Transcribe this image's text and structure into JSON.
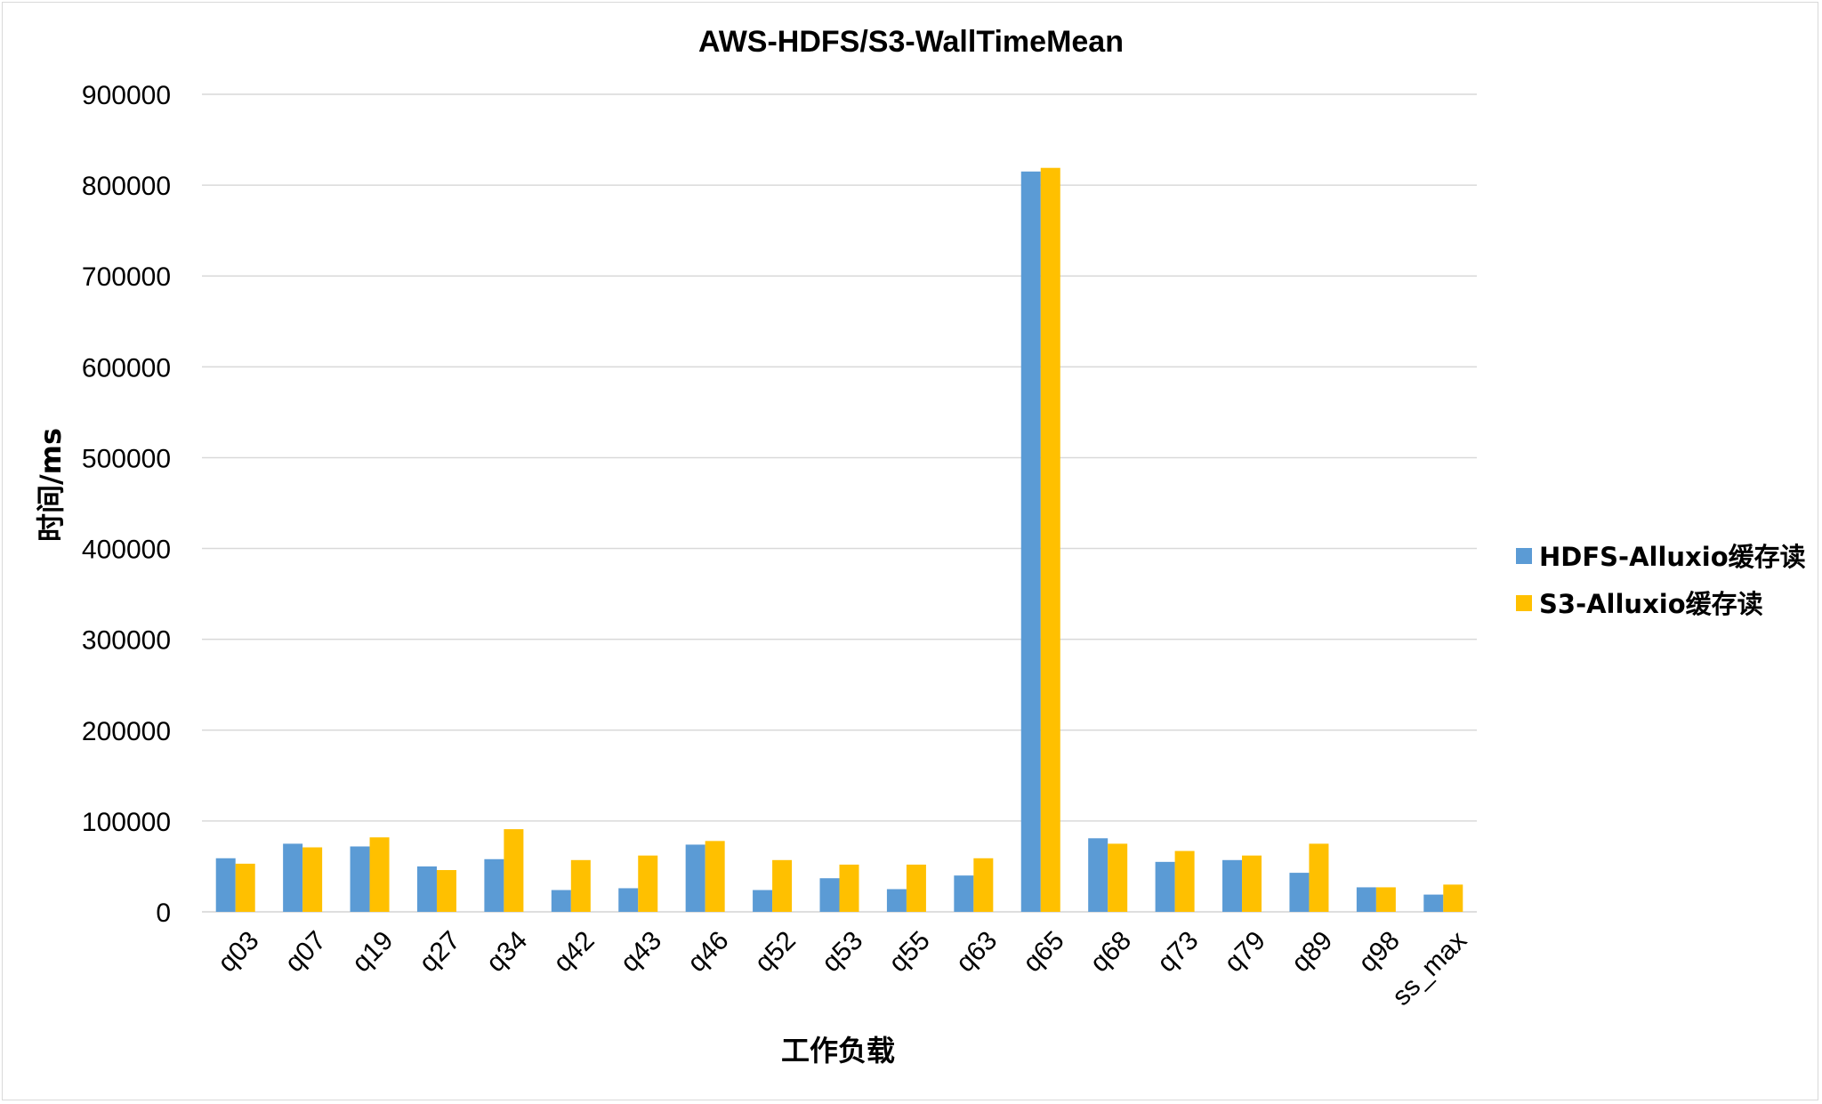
{
  "chart_data": {
    "type": "bar",
    "title": "AWS-HDFS/S3-WallTimeMean",
    "xlabel": "工作负载",
    "ylabel": "时间/ms",
    "ylim": [
      0,
      900000
    ],
    "yticks": [
      "0",
      "100000",
      "200000",
      "300000",
      "400000",
      "500000",
      "600000",
      "700000",
      "800000",
      "900000"
    ],
    "grid": true,
    "legend_position": "right",
    "categories": [
      "q03",
      "q07",
      "q19",
      "q27",
      "q34",
      "q42",
      "q43",
      "q46",
      "q52",
      "q53",
      "q55",
      "q63",
      "q65",
      "q68",
      "q73",
      "q79",
      "q89",
      "q98",
      "ss_max"
    ],
    "series": [
      {
        "name": "HDFS-Alluxio缓存读",
        "color": "#5b9bd5",
        "values": [
          59000,
          75000,
          72000,
          50000,
          58000,
          24000,
          26000,
          74000,
          24000,
          37000,
          25000,
          40000,
          815000,
          81000,
          55000,
          57000,
          43000,
          27000,
          19000
        ]
      },
      {
        "name": "S3-Alluxio缓存读",
        "color": "#ffc000",
        "values": [
          53000,
          71000,
          82000,
          46000,
          91000,
          57000,
          62000,
          78000,
          57000,
          52000,
          52000,
          59000,
          819000,
          75000,
          67000,
          62000,
          75000,
          27000,
          30000
        ]
      }
    ]
  }
}
